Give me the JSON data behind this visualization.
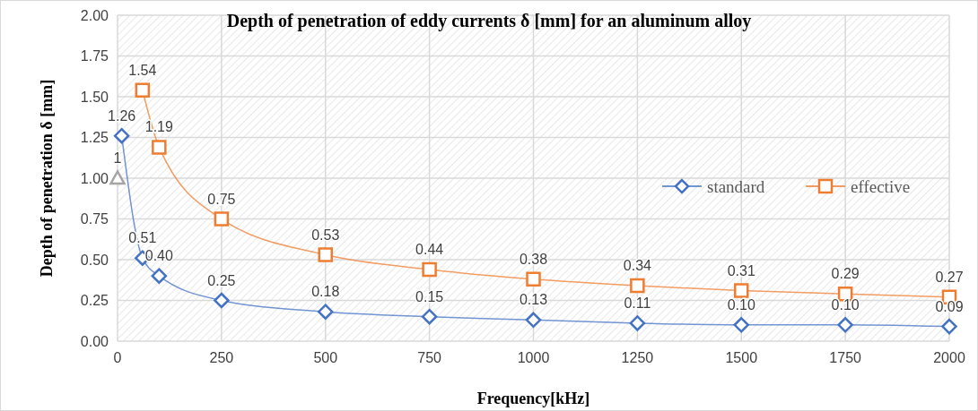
{
  "chart_data": {
    "type": "line",
    "title": "Depth of penetration of eddy currents δ [mm] for an aluminum alloy",
    "xlabel": "Frequency[kHz]",
    "ylabel": "Depth of penetration δ [mm]",
    "xlim": [
      0,
      2000
    ],
    "xticks": [
      0,
      250,
      500,
      750,
      1000,
      1250,
      1500,
      1750,
      2000
    ],
    "ylim": [
      0,
      2
    ],
    "yticks": [
      {
        "value": 0,
        "label": "0.00"
      },
      {
        "value": 0.25,
        "label": "0.25"
      },
      {
        "value": 0.5,
        "label": "0.50"
      },
      {
        "value": 0.75,
        "label": "0.75"
      },
      {
        "value": 1,
        "label": "1.00"
      },
      {
        "value": 1.25,
        "label": "1.25"
      },
      {
        "value": 1.5,
        "label": "1.50"
      },
      {
        "value": 1.75,
        "label": "1.75"
      },
      {
        "value": 2,
        "label": "2.00"
      }
    ],
    "grid": true,
    "legend": "right",
    "data_labels": true,
    "series": [
      {
        "name": "standard",
        "color": "#4472c4",
        "marker": "diamond",
        "x": [
          10,
          60,
          100,
          250,
          500,
          750,
          1000,
          1250,
          1500,
          1750,
          2000
        ],
        "values": [
          1.26,
          0.51,
          0.4,
          0.25,
          0.18,
          0.15,
          0.13,
          0.11,
          0.1,
          0.1,
          0.09
        ],
        "value_labels": [
          "1.26",
          "0.51",
          "0.40",
          "0.25",
          "0.18",
          "0.15",
          "0.13",
          "0.11",
          "0.10",
          "0.10",
          "0.09"
        ]
      },
      {
        "name": "effective",
        "color": "#ed7d31",
        "marker": "square",
        "x": [
          60,
          100,
          250,
          500,
          750,
          1000,
          1250,
          1500,
          1750,
          2000
        ],
        "values": [
          1.54,
          1.19,
          0.75,
          0.53,
          0.44,
          0.38,
          0.34,
          0.31,
          0.29,
          0.27
        ]
      },
      {
        "type": "scatter",
        "color": "#a5a5a5",
        "marker": "triangle",
        "x": [
          0
        ],
        "values": [
          1
        ],
        "value_labels": [
          "1"
        ]
      }
    ]
  }
}
